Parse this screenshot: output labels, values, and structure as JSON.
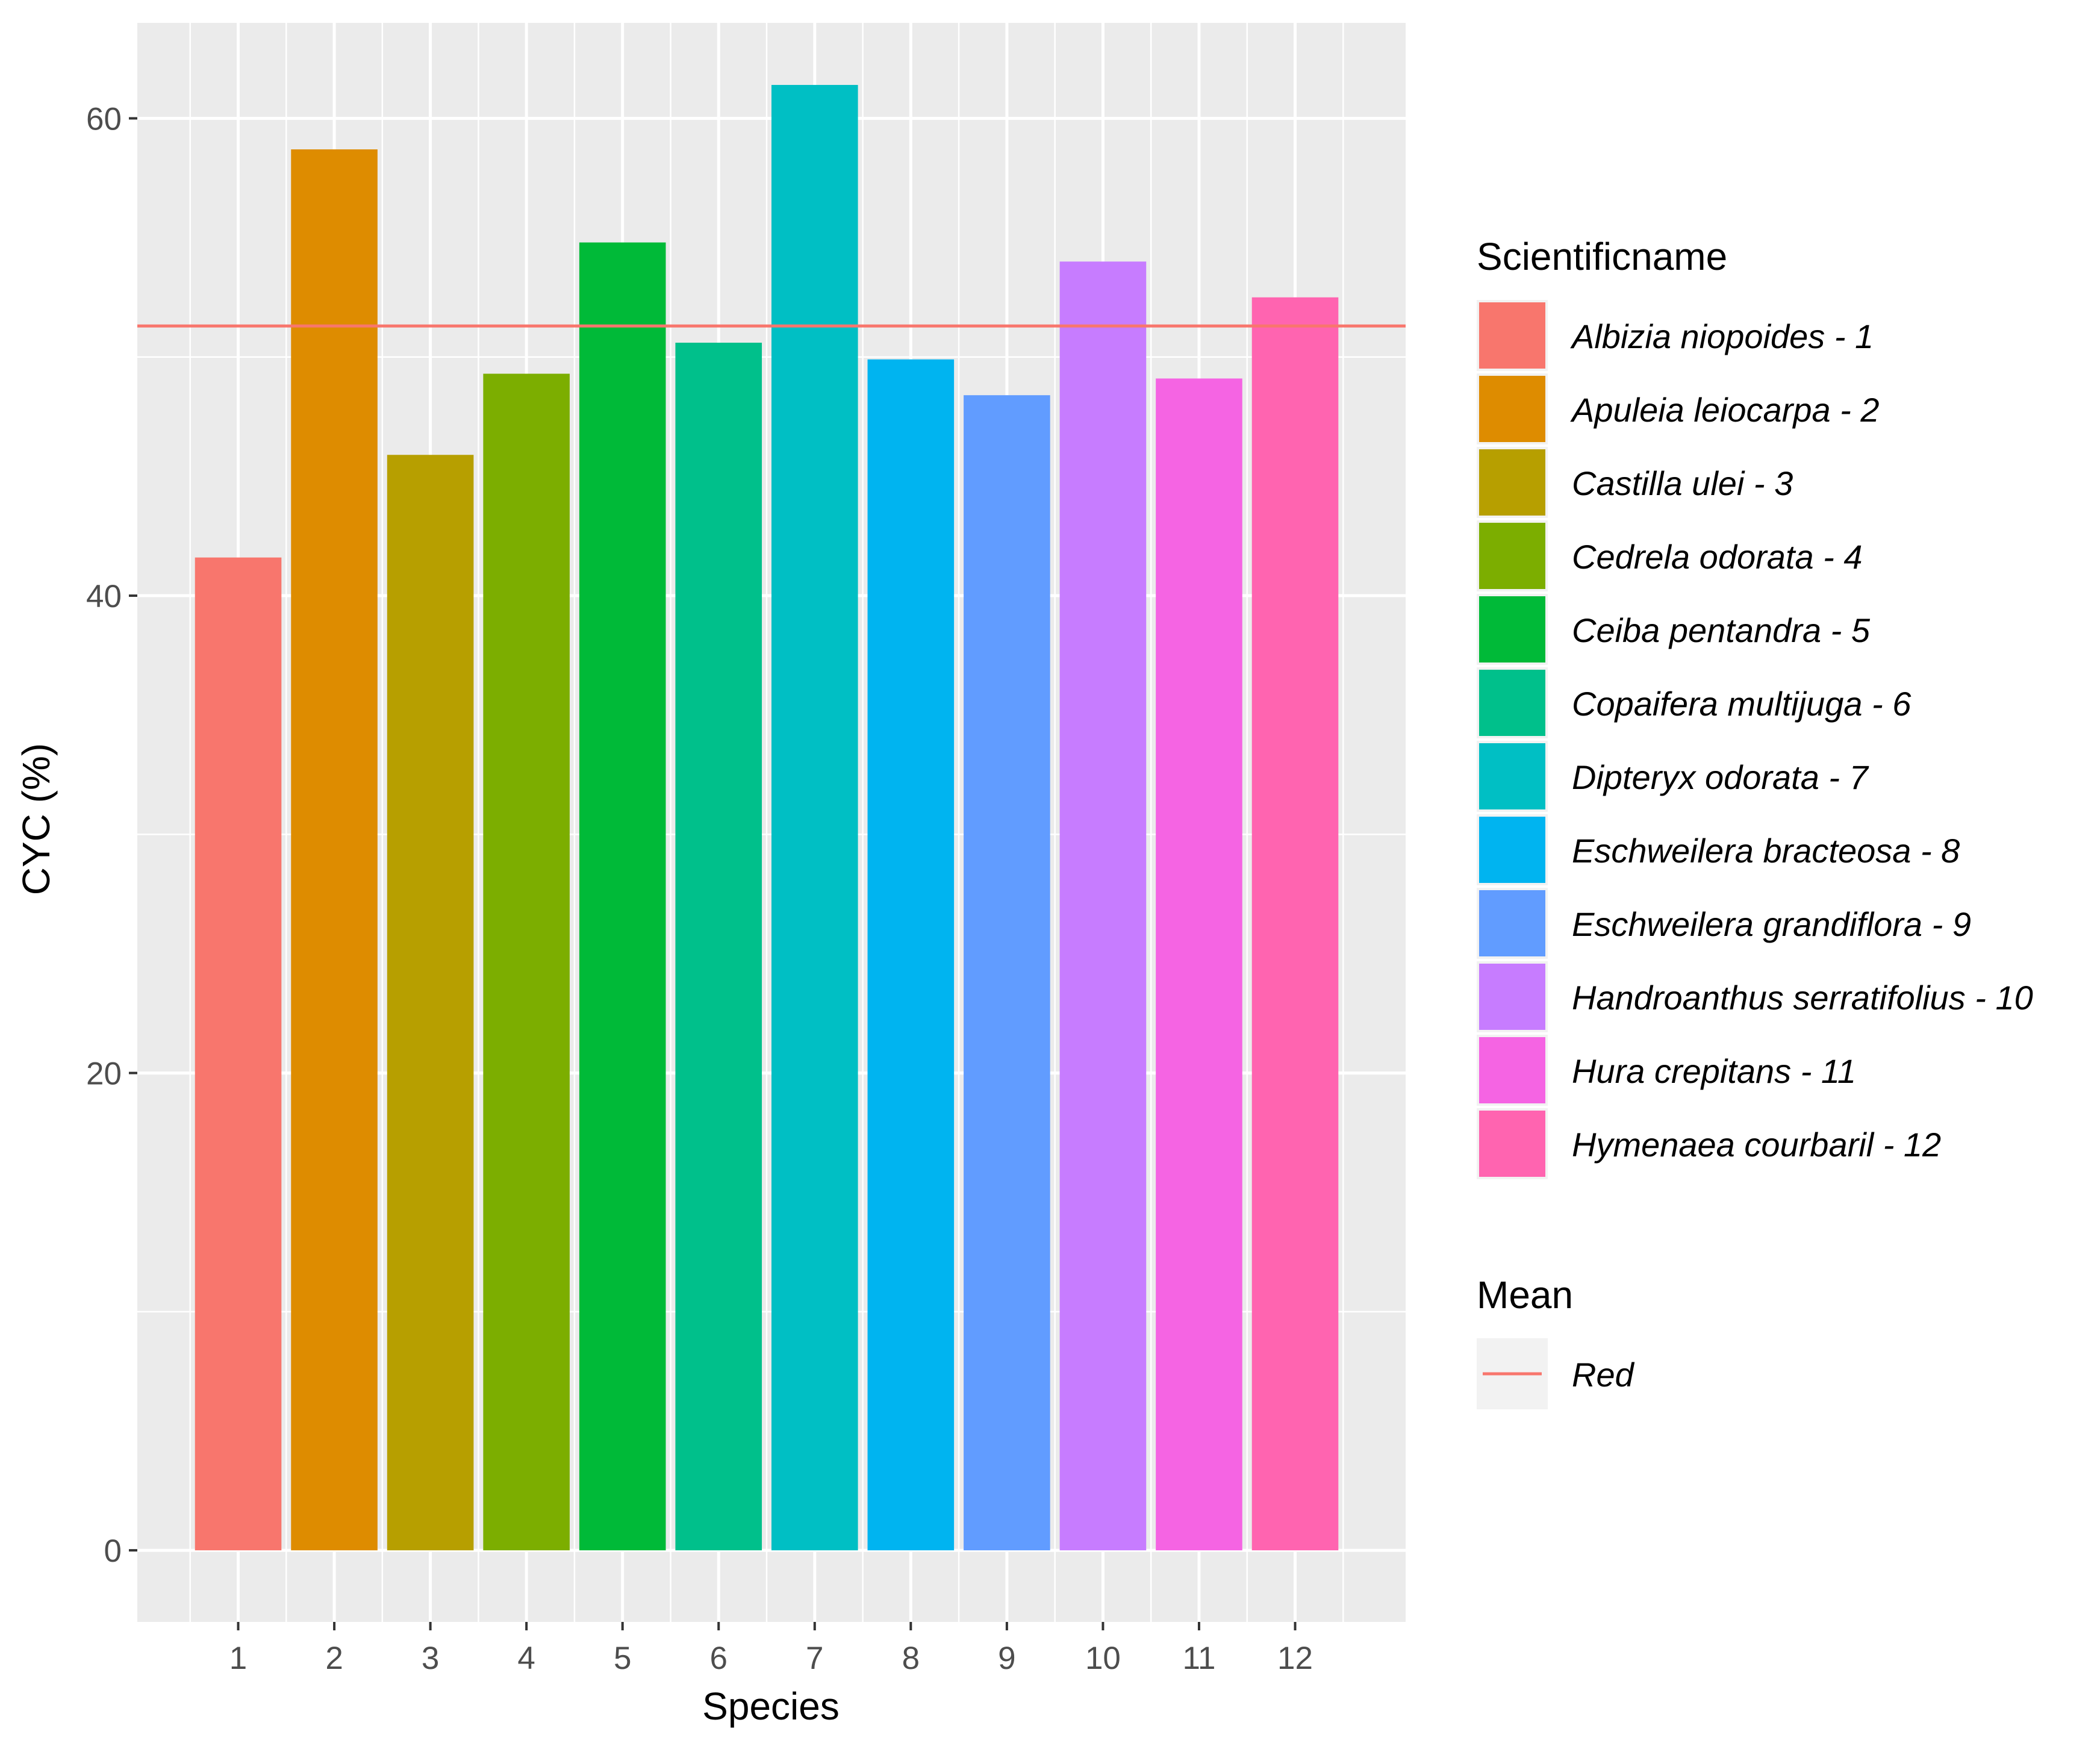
{
  "chart_data": {
    "type": "bar",
    "xlabel": "Species",
    "ylabel": "CYC (%)",
    "categories": [
      "1",
      "2",
      "3",
      "4",
      "5",
      "6",
      "7",
      "8",
      "9",
      "10",
      "11",
      "12"
    ],
    "values": [
      41.6,
      58.7,
      45.9,
      49.3,
      54.8,
      50.6,
      61.4,
      49.9,
      48.4,
      54.0,
      49.1,
      52.5
    ],
    "y_ticks": [
      0,
      20,
      40,
      60
    ],
    "y_tick_labels": [
      "0",
      "20",
      "40",
      "60"
    ],
    "ylim": [
      -3,
      64
    ],
    "mean": 51.3,
    "grid": true,
    "legend_position": "right",
    "legend": {
      "fill_title": "Scientificname",
      "fill_entries": [
        {
          "label": "Albizia niopoides - 1",
          "color": "#F8766D"
        },
        {
          "label": "Apuleia leiocarpa - 2",
          "color": "#DE8C00"
        },
        {
          "label": "Castilla ulei - 3",
          "color": "#B79F00"
        },
        {
          "label": "Cedrela odorata - 4",
          "color": "#7CAE00"
        },
        {
          "label": "Ceiba pentandra - 5",
          "color": "#00BA38"
        },
        {
          "label": "Copaifera multijuga - 6",
          "color": "#00C08B"
        },
        {
          "label": "Dipteryx odorata - 7",
          "color": "#00BFC4"
        },
        {
          "label": "Eschweilera bracteosa - 8",
          "color": "#00B4F0"
        },
        {
          "label": "Eschweilera grandiflora - 9",
          "color": "#619CFF"
        },
        {
          "label": "Handroanthus serratifolius - 10",
          "color": "#C77CFF"
        },
        {
          "label": "Hura crepitans - 11",
          "color": "#F564E3"
        },
        {
          "label": "Hymenaea courbaril - 12",
          "color": "#FF64B0"
        }
      ],
      "line_title": "Mean",
      "line_entry": {
        "label": "Red",
        "color": "#F8766D"
      }
    }
  }
}
